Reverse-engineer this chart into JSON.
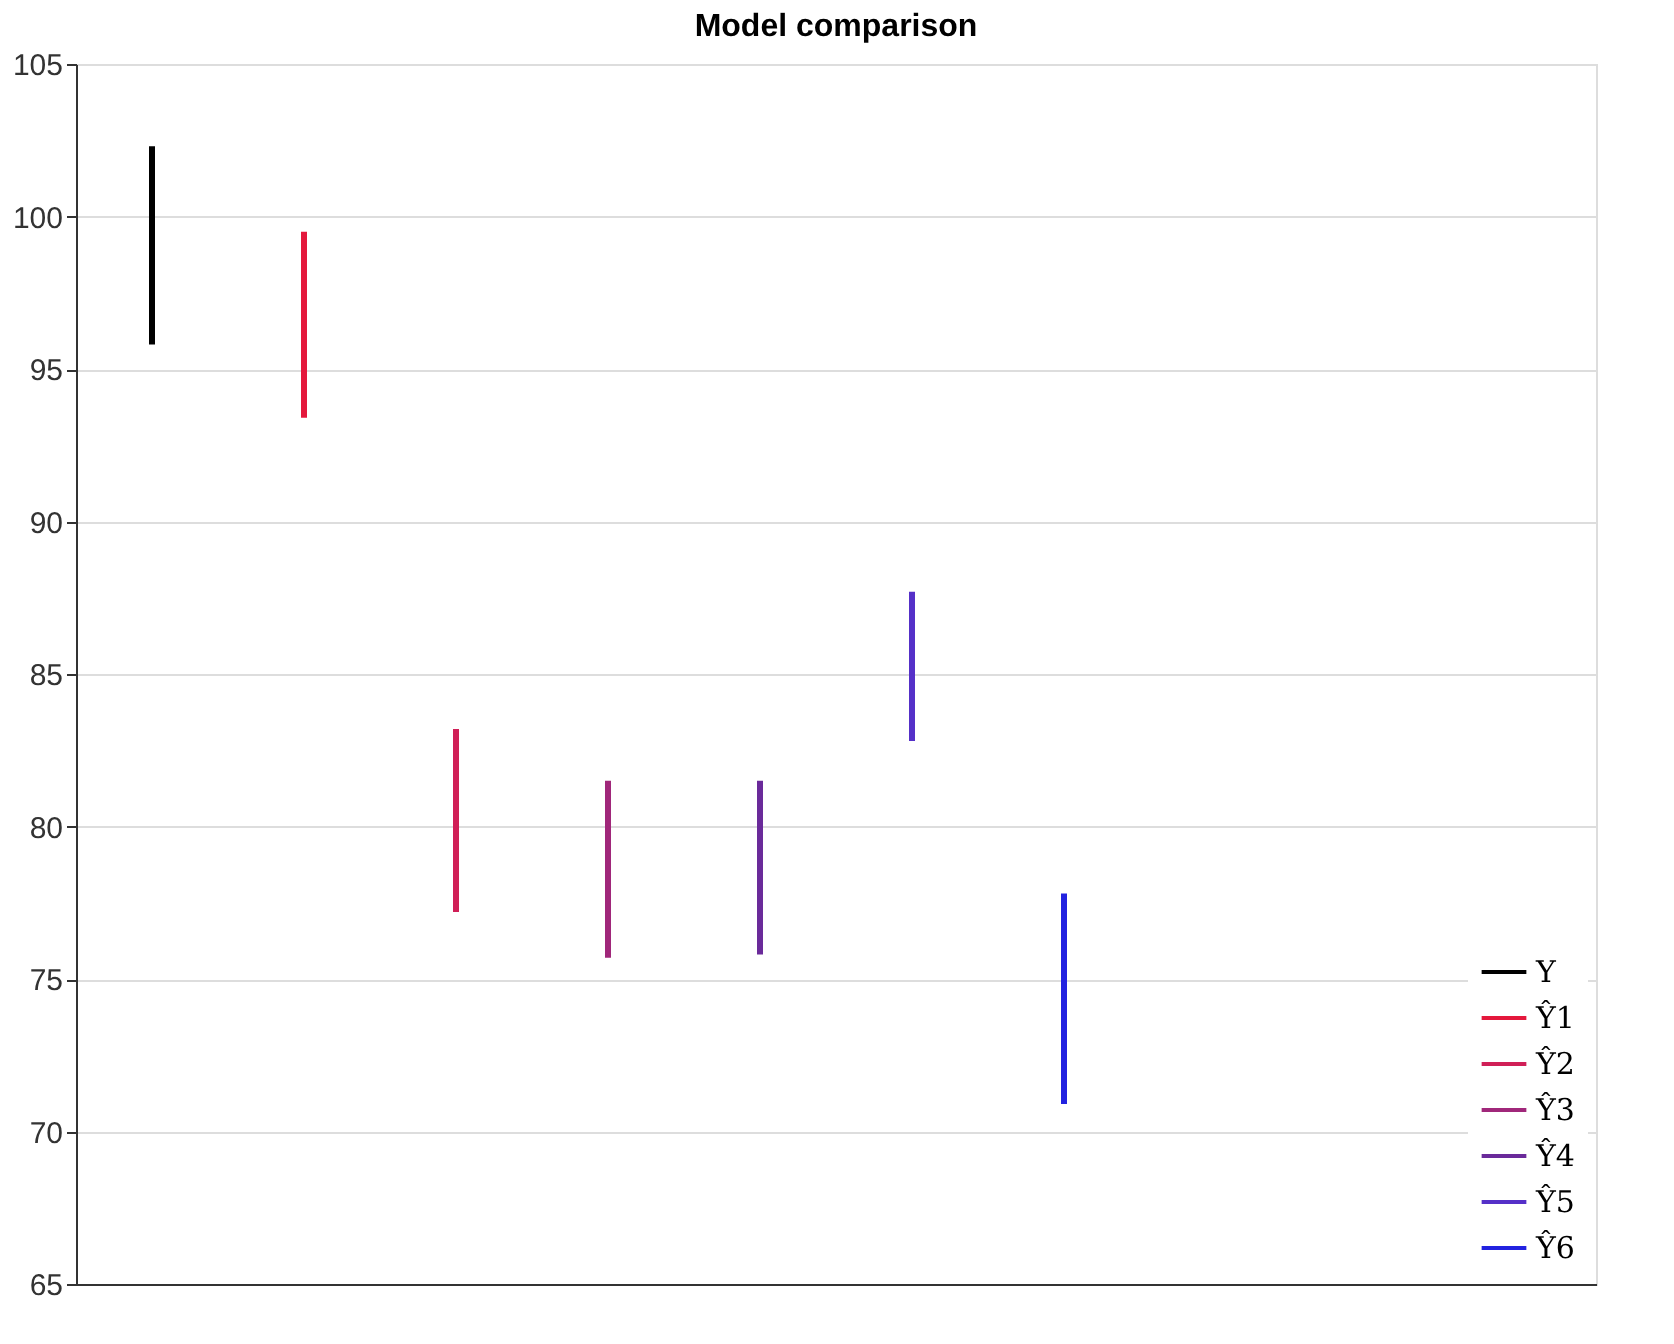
{
  "chart_data": {
    "type": "bar",
    "title": "Model comparison",
    "categories": [
      null,
      null,
      null,
      null,
      null,
      null,
      null,
      null,
      null,
      null
    ],
    "series": [
      {
        "name": "Y",
        "color": "#000000",
        "values": [
          6.5,
          null,
          null,
          null,
          null,
          null,
          null,
          null,
          null,
          null
        ],
        "base": [
          95.8,
          null,
          null,
          null,
          null,
          null,
          null,
          null,
          null,
          null
        ]
      },
      {
        "name": "Ŷ1",
        "color": "#e4183c",
        "values": [
          null,
          6.1,
          null,
          null,
          null,
          null,
          null,
          null,
          null,
          null
        ],
        "base": [
          null,
          93.4,
          null,
          null,
          null,
          null,
          null,
          null,
          null,
          null
        ]
      },
      {
        "name": "Ŷ2",
        "color": "#d01f57",
        "values": [
          null,
          null,
          6.0,
          null,
          null,
          null,
          null,
          null,
          null,
          null
        ],
        "base": [
          null,
          null,
          77.2,
          null,
          null,
          null,
          null,
          null,
          null,
          null
        ]
      },
      {
        "name": "Ŷ3",
        "color": "#a0277a",
        "values": [
          null,
          null,
          null,
          5.8,
          null,
          null,
          null,
          null,
          null,
          null
        ],
        "base": [
          null,
          null,
          null,
          75.7,
          null,
          null,
          null,
          null,
          null,
          null
        ]
      },
      {
        "name": "Ŷ4",
        "color": "#6a2a9a",
        "values": [
          null,
          null,
          null,
          null,
          5.7,
          null,
          null,
          null,
          null,
          null
        ],
        "base": [
          null,
          null,
          null,
          null,
          75.8,
          null,
          null,
          null,
          null,
          null
        ]
      },
      {
        "name": "Ŷ5",
        "color": "#5530c8",
        "values": [
          null,
          null,
          null,
          null,
          null,
          4.9,
          null,
          null,
          null,
          null
        ],
        "base": [
          null,
          null,
          null,
          null,
          null,
          82.8,
          null,
          null,
          null,
          null
        ]
      },
      {
        "name": "Ŷ6",
        "color": "#2222e0",
        "values": [
          null,
          null,
          null,
          null,
          null,
          null,
          6.9,
          null,
          null,
          null
        ],
        "base": [
          null,
          null,
          null,
          null,
          null,
          null,
          70.9,
          null,
          null,
          null
        ]
      }
    ],
    "ylim": [
      65,
      105
    ],
    "yticks": [
      65,
      70,
      75,
      80,
      85,
      90,
      95,
      100,
      105
    ],
    "grid": "y",
    "legend": "bottom right",
    "tick_labels": "y"
  }
}
